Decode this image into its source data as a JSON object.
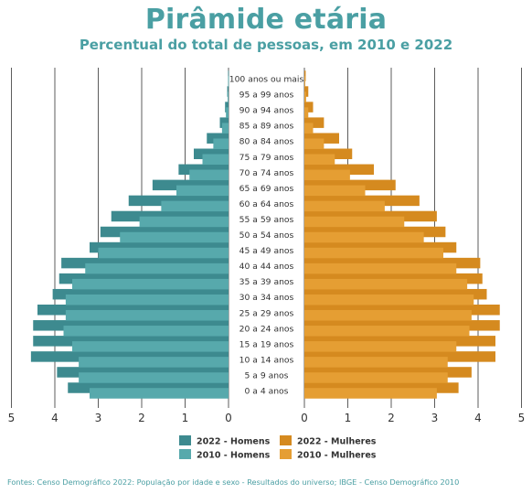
{
  "title": "Pirâmide etária",
  "subtitle": "Percentual do total de pessoas, em 2010 e 2022",
  "footer": "Fontes: Censo Demográfico 2022: População por idade e sexo - Resultados do universo; IBGE - Censo Demográfico 2010",
  "colors": {
    "homens_2022": "#3d8a8f",
    "homens_2010": "#57a9ac",
    "mulheres_2022": "#d58a1f",
    "mulheres_2010": "#e59e33",
    "grid": "#333333",
    "title": "#4a9fa3",
    "text": "#333333"
  },
  "legend": {
    "items": [
      {
        "label": "2022 - Homens",
        "color": "#3d8a8f"
      },
      {
        "label": "2010 - Homens",
        "color": "#57a9ac"
      },
      {
        "label": "2022 - Mulheres",
        "color": "#d58a1f"
      },
      {
        "label": "2010 - Mulheres",
        "color": "#e59e33"
      }
    ]
  },
  "chart_data": {
    "type": "bar",
    "orientation": "horizontal",
    "layout": "population-pyramid",
    "title": "Pirâmide etária",
    "subtitle": "Percentual do total de pessoas, em 2010 e 2022",
    "xlim": [
      0,
      5
    ],
    "x_ticks_left": [
      "5",
      "4",
      "3",
      "2",
      "1",
      "0"
    ],
    "x_ticks_right": [
      "0",
      "1",
      "2",
      "3",
      "4",
      "5"
    ],
    "grid": true,
    "legend_position": "bottom",
    "categories": [
      "100 anos ou mais",
      "95 a 99 anos",
      "90 a 94 anos",
      "85 a 89 anos",
      "80 a 84 anos",
      "75 a 79 anos",
      "70 a 74 anos",
      "65 a 69 anos",
      "60 a 64 anos",
      "55 a 59 anos",
      "50 a 54 anos",
      "45 a 49 anos",
      "40 a 44 anos",
      "35 a 39 anos",
      "30 a 34 anos",
      "25 a 29 anos",
      "20 a 24 anos",
      "15 a 19 anos",
      "10 a 14 anos",
      "5 a 9 anos",
      "0 a 4 anos"
    ],
    "series": [
      {
        "name": "2022 - Homens",
        "side": "left",
        "values": [
          0.01,
          0.03,
          0.08,
          0.2,
          0.5,
          0.8,
          1.15,
          1.75,
          2.3,
          2.7,
          2.95,
          3.2,
          3.85,
          3.9,
          4.05,
          4.4,
          4.5,
          4.5,
          4.55,
          3.95,
          3.7
        ]
      },
      {
        "name": "2010 - Homens",
        "side": "left",
        "values": [
          0.01,
          0.02,
          0.06,
          0.15,
          0.35,
          0.6,
          0.9,
          1.2,
          1.55,
          2.05,
          2.5,
          3.0,
          3.3,
          3.6,
          3.75,
          3.75,
          3.8,
          3.6,
          3.45,
          3.45,
          3.2
        ]
      },
      {
        "name": "2022 - Mulheres",
        "side": "right",
        "values": [
          0.03,
          0.09,
          0.2,
          0.45,
          0.8,
          1.1,
          1.6,
          2.1,
          2.65,
          3.05,
          3.25,
          3.5,
          4.05,
          4.1,
          4.2,
          4.5,
          4.5,
          4.4,
          4.4,
          3.85,
          3.55
        ]
      },
      {
        "name": "2010 - Mulheres",
        "side": "right",
        "values": [
          0.02,
          0.04,
          0.09,
          0.2,
          0.45,
          0.7,
          1.05,
          1.4,
          1.85,
          2.3,
          2.75,
          3.2,
          3.5,
          3.75,
          3.9,
          3.85,
          3.8,
          3.5,
          3.3,
          3.3,
          3.05
        ]
      }
    ]
  }
}
